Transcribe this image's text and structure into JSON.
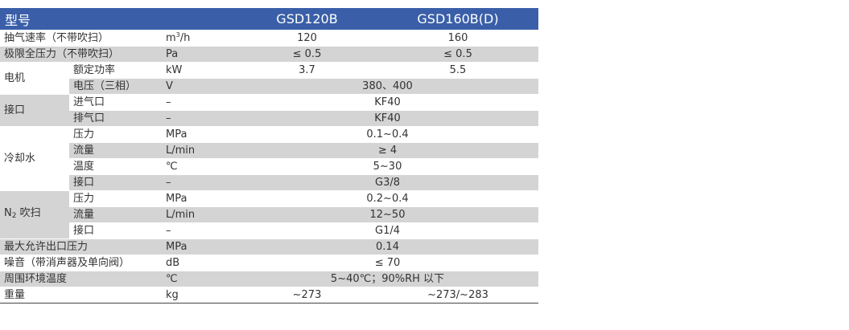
{
  "header": {
    "model_label": "型号",
    "models": [
      "GSD120B",
      "GSD160B(D)"
    ]
  },
  "rows": {
    "pumping_speed": {
      "name": "抽气速率（不带吹扫）",
      "unit_base": "m",
      "unit_sup": "3",
      "unit_tail": "/h",
      "v1": "120",
      "v2": "160"
    },
    "ultimate_pressure": {
      "name": "极限全压力（不带吹扫）",
      "unit": "Pa",
      "v1": "≤ 0.5",
      "v2": "≤ 0.5"
    },
    "motor": {
      "group": "电机",
      "power": {
        "name": "额定功率",
        "unit": "kW",
        "v1": "3.7",
        "v2": "5.5"
      },
      "voltage": {
        "name": "电压（三相）",
        "unit": "V",
        "v": "380、400"
      }
    },
    "port": {
      "group": "接口",
      "inlet": {
        "name": "进气口",
        "unit": "–",
        "v": "KF40"
      },
      "outlet": {
        "name": "排气口",
        "unit": "–",
        "v": "KF40"
      }
    },
    "cooling": {
      "group": "冷却水",
      "pressure": {
        "name": "压力",
        "unit": "MPa",
        "v": "0.1~0.4"
      },
      "flow": {
        "name": "流量",
        "unit": "L/min",
        "v": "≥ 4"
      },
      "temp": {
        "name": "温度",
        "unit": "℃",
        "v": "5~30"
      },
      "port": {
        "name": "接口",
        "unit": "–",
        "v": "G3/8"
      }
    },
    "purge": {
      "group_base": "N",
      "group_sub": "2",
      "group_tail": " 吹扫",
      "pressure": {
        "name": "压力",
        "unit": "MPa",
        "v": "0.2~0.4"
      },
      "flow": {
        "name": "流量",
        "unit": "L/min",
        "v": "12~50"
      },
      "port": {
        "name": "接口",
        "unit": "–",
        "v": "G1/4"
      }
    },
    "max_outlet_pressure": {
      "name": "最大允许出口压力",
      "unit": "MPa",
      "v": "0.14"
    },
    "noise": {
      "name": "噪音（带消声器及单向阀）",
      "unit": "dB",
      "v": "≤ 70"
    },
    "ambient_temp": {
      "name": "周围环境温度",
      "unit": "℃",
      "v": "5~40℃；90%RH 以下"
    },
    "weight": {
      "name": "重量",
      "unit": "kg",
      "v1": "~273",
      "v2": "~273/~283"
    }
  }
}
